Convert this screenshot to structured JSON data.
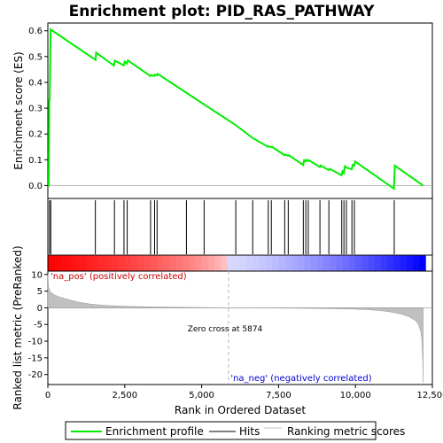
{
  "chart_data": {
    "type": "line",
    "title": "Enrichment plot: PID_RAS_PATHWAY",
    "top_panel": {
      "ylabel": "Enrichment score (ES)",
      "ylim": [
        -0.05,
        0.63
      ],
      "yticks": [
        0.0,
        0.1,
        0.2,
        0.3,
        0.4,
        0.5,
        0.6
      ],
      "ytick_labels": [
        "0.0",
        "0.1",
        "0.2",
        "0.3",
        "0.4",
        "0.5",
        "0.6"
      ],
      "series": [
        {
          "name": "Enrichment profile",
          "color": "#00ee00",
          "x": [
            0,
            30,
            45,
            60,
            90,
            1550,
            1570,
            2150,
            2180,
            2470,
            2500,
            2570,
            2600,
            3330,
            3360,
            3460,
            3490,
            3540,
            3570,
            4500,
            5070,
            6100,
            6650,
            7160,
            7190,
            7260,
            7290,
            7690,
            7720,
            7810,
            7840,
            8300,
            8330,
            8380,
            8410,
            8460,
            8490,
            8840,
            8870,
            9130,
            9160,
            9550,
            9580,
            9620,
            9660,
            9700,
            9880,
            9910,
            9960,
            9990,
            11250,
            11280,
            12200
          ],
          "y": [
            0.0,
            0.0,
            0.33,
            0.33,
            0.605,
            0.487,
            0.515,
            0.465,
            0.484,
            0.466,
            0.48,
            0.473,
            0.485,
            0.425,
            0.428,
            0.425,
            0.43,
            0.427,
            0.433,
            0.36,
            0.315,
            0.235,
            0.185,
            0.15,
            0.152,
            0.149,
            0.15,
            0.118,
            0.12,
            0.116,
            0.117,
            0.08,
            0.098,
            0.094,
            0.1,
            0.095,
            0.098,
            0.072,
            0.078,
            0.06,
            0.065,
            0.04,
            0.055,
            0.048,
            0.075,
            0.07,
            0.063,
            0.08,
            0.077,
            0.093,
            -0.012,
            0.077,
            0.0
          ]
        }
      ],
      "hits_legend": "Hits",
      "hit_positions": [
        55,
        95,
        1545,
        2165,
        2475,
        2580,
        3340,
        3470,
        3550,
        4505,
        5080,
        6110,
        6660,
        7165,
        7265,
        7700,
        7815,
        8305,
        8385,
        8465,
        8845,
        9135,
        9555,
        9625,
        9705,
        9885,
        9965,
        11260
      ]
    },
    "heatmap": {
      "positive_color": "#ff0000",
      "negative_color": "#0000ff"
    },
    "bottom_panel": {
      "ylabel": "Ranked list metric (PreRanked)",
      "ylim": [
        -23,
        11
      ],
      "yticks": [
        10,
        5,
        0,
        -5,
        -10,
        -15,
        -20
      ],
      "ytick_labels": [
        "10",
        "5",
        "0",
        "-5",
        "-10",
        "-15",
        "-20"
      ],
      "series": [
        {
          "name": "Ranking metric scores",
          "color": "#c0c0c0",
          "x": [
            0,
            20,
            80,
            200,
            400,
            700,
            1000,
            1400,
            1900,
            2500,
            3200,
            4000,
            5000,
            5874,
            7000,
            8000,
            9000,
            9800,
            10400,
            10800,
            11200,
            11500,
            11750,
            11950,
            12050,
            12120,
            12160,
            12190,
            12200
          ],
          "y": [
            10.2,
            6.2,
            4.8,
            3.9,
            3.2,
            2.4,
            1.7,
            1.1,
            0.7,
            0.45,
            0.3,
            0.18,
            0.08,
            0.0,
            -0.05,
            -0.12,
            -0.22,
            -0.35,
            -0.55,
            -0.85,
            -1.3,
            -1.9,
            -2.7,
            -3.8,
            -5.0,
            -7.0,
            -10.0,
            -16.0,
            -22.5
          ]
        }
      ],
      "pos_label": "'na_pos' (positively correlated)",
      "neg_label": "'na_neg' (negatively correlated)",
      "zero_cross_label": "Zero cross at 5874",
      "zero_cross": 5874
    },
    "xlabel": "Rank in Ordered Dataset",
    "xlim": [
      0,
      12500
    ],
    "xticks": [
      0,
      2500,
      5000,
      7500,
      10000,
      12500
    ],
    "xtick_labels": [
      "0",
      "2,500",
      "5,000",
      "7,500",
      "10,000",
      "12,500"
    ],
    "legend": [
      "Enrichment profile",
      "Hits",
      "Ranking metric scores"
    ]
  }
}
